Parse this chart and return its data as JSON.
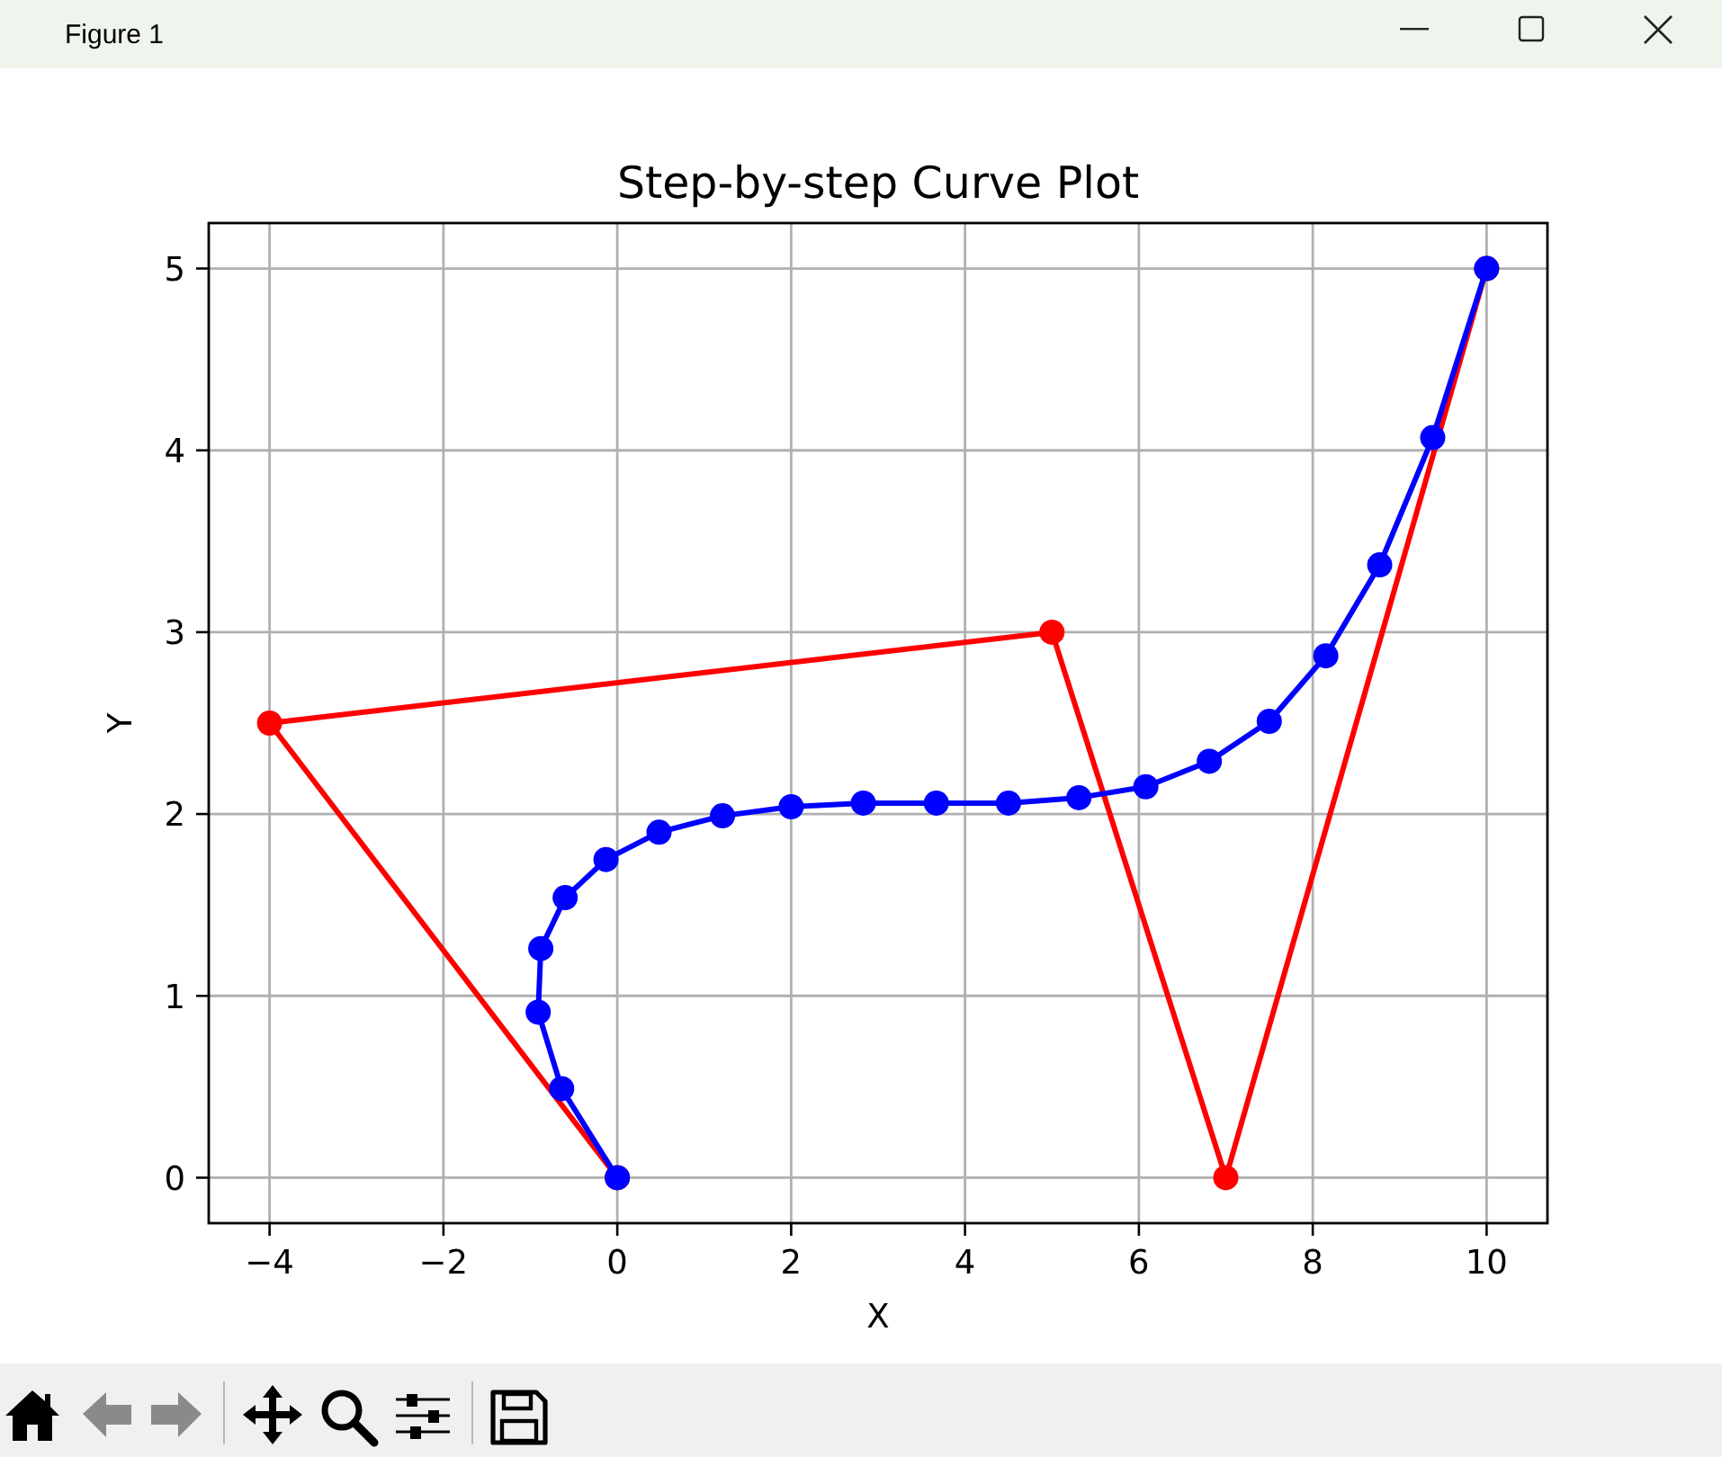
{
  "chart_data": {
    "type": "line",
    "title": "Step-by-step Curve Plot",
    "xlabel": "X",
    "ylabel": "Y",
    "annotations": [
      "Figure 1"
    ],
    "series": [
      {
        "color": "#ff0000",
        "x": [
          0,
          -4,
          5,
          7,
          10
        ],
        "values": [
          0,
          2.5,
          3,
          0,
          5
        ]
      },
      {
        "color": "#0000ff",
        "x": [
          0,
          -0.64,
          -0.91,
          -0.88,
          -0.6,
          -0.13,
          0.48,
          1.21,
          2.0,
          2.83,
          3.67,
          4.5,
          5.31,
          6.08,
          6.81,
          7.5,
          8.15,
          8.77,
          9.38,
          10
        ],
        "values": [
          0,
          0.49,
          0.91,
          1.26,
          1.54,
          1.75,
          1.9,
          1.99,
          2.04,
          2.06,
          2.06,
          2.06,
          2.09,
          2.15,
          2.29,
          2.51,
          2.87,
          3.37,
          4.07,
          5
        ]
      }
    ],
    "xlim": [
      -4.7,
      10.7
    ],
    "ylim": [
      -0.25,
      5.25
    ],
    "xticks": [
      {
        "value": -4,
        "label": "−4"
      },
      {
        "value": -2,
        "label": "−2"
      },
      0,
      2,
      4,
      6,
      8,
      10
    ],
    "yticks": [
      0,
      1,
      2,
      3,
      4,
      5
    ],
    "grid": true,
    "marker": "circle"
  }
}
